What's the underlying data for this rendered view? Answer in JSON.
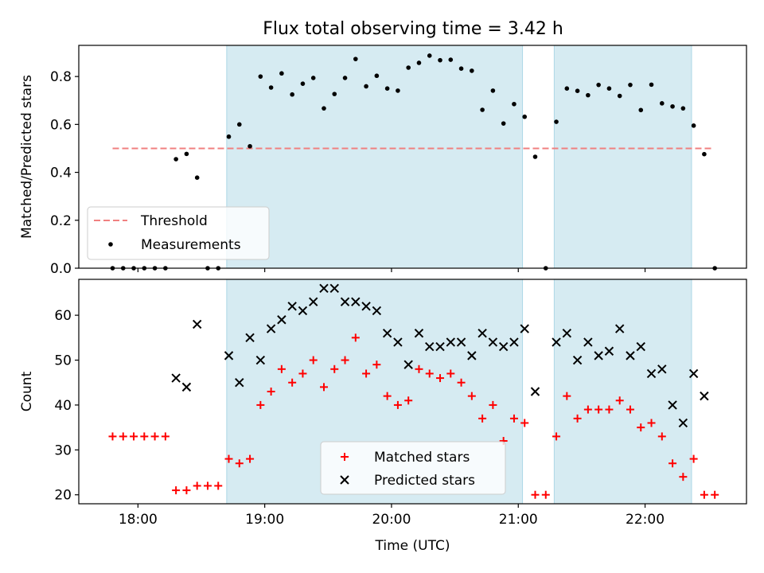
{
  "title": "Flux total observing time = 3.42 h",
  "colors": {
    "shade": "#add8e6",
    "threshold": "#f08080",
    "measurement": "#000000",
    "matched": "#ff0000",
    "predicted": "#000000"
  },
  "chart_data": [
    {
      "type": "scatter",
      "ylabel": "Matched/Predicted stars",
      "ylim": [
        0,
        0.93
      ],
      "yticks": [
        "0.0",
        "0.2",
        "0.4",
        "0.6",
        "0.8"
      ],
      "xlim": [
        "17:32",
        "22:48"
      ],
      "grid": false,
      "legend": {
        "placement": "lower-left",
        "entries": [
          "Threshold",
          "Measurements"
        ]
      },
      "shaded_intervals": [
        [
          "18:42",
          "21:02"
        ],
        [
          "21:17",
          "22:22"
        ]
      ],
      "threshold": {
        "name": "Threshold",
        "y": 0.5,
        "x_range": [
          "17:48",
          "22:32"
        ]
      },
      "series": [
        {
          "name": "Measurements",
          "points": [
            [
              "17:48",
              0.0
            ],
            [
              "17:53",
              0.0
            ],
            [
              "17:58",
              0.0
            ],
            [
              "18:03",
              0.0
            ],
            [
              "18:08",
              0.0
            ],
            [
              "18:13",
              0.0
            ],
            [
              "18:18",
              0.455
            ],
            [
              "18:23",
              0.477
            ],
            [
              "18:28",
              0.378
            ],
            [
              "18:33",
              0.0
            ],
            [
              "18:38",
              0.0
            ],
            [
              "18:43",
              0.549
            ],
            [
              "18:48",
              0.6
            ],
            [
              "18:53",
              0.509
            ],
            [
              "18:58",
              0.8
            ],
            [
              "19:03",
              0.754
            ],
            [
              "19:08",
              0.813
            ],
            [
              "19:13",
              0.725
            ],
            [
              "19:18",
              0.77
            ],
            [
              "19:23",
              0.794
            ],
            [
              "19:28",
              0.667
            ],
            [
              "19:33",
              0.727
            ],
            [
              "19:38",
              0.794
            ],
            [
              "19:43",
              0.873
            ],
            [
              "19:48",
              0.759
            ],
            [
              "19:53",
              0.803
            ],
            [
              "19:58",
              0.75
            ],
            [
              "20:03",
              0.741
            ],
            [
              "20:08",
              0.837
            ],
            [
              "20:13",
              0.857
            ],
            [
              "20:18",
              0.887
            ],
            [
              "20:23",
              0.868
            ],
            [
              "20:28",
              0.87
            ],
            [
              "20:33",
              0.833
            ],
            [
              "20:38",
              0.824
            ],
            [
              "20:43",
              0.661
            ],
            [
              "20:48",
              0.741
            ],
            [
              "20:53",
              0.604
            ],
            [
              "20:58",
              0.685
            ],
            [
              "21:03",
              0.632
            ],
            [
              "21:08",
              0.465
            ],
            [
              "21:13",
              0.0
            ],
            [
              "21:18",
              0.611
            ],
            [
              "21:23",
              0.75
            ],
            [
              "21:28",
              0.74
            ],
            [
              "21:33",
              0.722
            ],
            [
              "21:38",
              0.765
            ],
            [
              "21:43",
              0.75
            ],
            [
              "21:48",
              0.719
            ],
            [
              "21:53",
              0.765
            ],
            [
              "21:58",
              0.66
            ],
            [
              "22:03",
              0.766
            ],
            [
              "22:08",
              0.688
            ],
            [
              "22:13",
              0.675
            ],
            [
              "22:18",
              0.667
            ],
            [
              "22:23",
              0.595
            ],
            [
              "22:28",
              0.476
            ],
            [
              "22:33",
              0.0
            ]
          ]
        }
      ]
    },
    {
      "type": "scatter",
      "xlabel": "Time (UTC)",
      "ylabel": "Count",
      "ylim": [
        18,
        68
      ],
      "yticks": [
        "20",
        "30",
        "40",
        "50",
        "60"
      ],
      "xlim": [
        "17:32",
        "22:48"
      ],
      "xticks": [
        "18:00",
        "19:00",
        "20:00",
        "21:00",
        "22:00"
      ],
      "grid": false,
      "legend": {
        "placement": "lower-center",
        "entries": [
          "Matched stars",
          "Predicted stars"
        ]
      },
      "shaded_intervals": [
        [
          "18:42",
          "21:02"
        ],
        [
          "21:17",
          "22:22"
        ]
      ],
      "series": [
        {
          "name": "Matched stars",
          "marker": "plus",
          "points": [
            [
              "17:48",
              33
            ],
            [
              "17:53",
              33
            ],
            [
              "17:58",
              33
            ],
            [
              "18:03",
              33
            ],
            [
              "18:08",
              33
            ],
            [
              "18:13",
              33
            ],
            [
              "18:18",
              21
            ],
            [
              "18:23",
              21
            ],
            [
              "18:28",
              22
            ],
            [
              "18:33",
              22
            ],
            [
              "18:38",
              22
            ],
            [
              "18:43",
              28
            ],
            [
              "18:48",
              27
            ],
            [
              "18:53",
              28
            ],
            [
              "18:58",
              40
            ],
            [
              "19:03",
              43
            ],
            [
              "19:08",
              48
            ],
            [
              "19:13",
              45
            ],
            [
              "19:18",
              47
            ],
            [
              "19:23",
              50
            ],
            [
              "19:28",
              44
            ],
            [
              "19:33",
              48
            ],
            [
              "19:38",
              50
            ],
            [
              "19:43",
              55
            ],
            [
              "19:48",
              47
            ],
            [
              "19:53",
              49
            ],
            [
              "19:58",
              42
            ],
            [
              "20:03",
              40
            ],
            [
              "20:08",
              41
            ],
            [
              "20:13",
              48
            ],
            [
              "20:18",
              47
            ],
            [
              "20:23",
              46
            ],
            [
              "20:28",
              47
            ],
            [
              "20:33",
              45
            ],
            [
              "20:38",
              42
            ],
            [
              "20:43",
              37
            ],
            [
              "20:48",
              40
            ],
            [
              "20:53",
              32
            ],
            [
              "20:58",
              37
            ],
            [
              "21:03",
              36
            ],
            [
              "21:08",
              20
            ],
            [
              "21:13",
              20
            ],
            [
              "21:18",
              33
            ],
            [
              "21:23",
              42
            ],
            [
              "21:28",
              37
            ],
            [
              "21:33",
              39
            ],
            [
              "21:38",
              39
            ],
            [
              "21:43",
              39
            ],
            [
              "21:48",
              41
            ],
            [
              "21:53",
              39
            ],
            [
              "21:58",
              35
            ],
            [
              "22:03",
              36
            ],
            [
              "22:08",
              33
            ],
            [
              "22:13",
              27
            ],
            [
              "22:18",
              24
            ],
            [
              "22:23",
              28
            ],
            [
              "22:28",
              20
            ],
            [
              "22:33",
              20
            ]
          ]
        },
        {
          "name": "Predicted stars",
          "marker": "x",
          "points": [
            [
              "18:18",
              46
            ],
            [
              "18:23",
              44
            ],
            [
              "18:28",
              58
            ],
            [
              "18:43",
              51
            ],
            [
              "18:48",
              45
            ],
            [
              "18:53",
              55
            ],
            [
              "18:58",
              50
            ],
            [
              "19:03",
              57
            ],
            [
              "19:08",
              59
            ],
            [
              "19:13",
              62
            ],
            [
              "19:18",
              61
            ],
            [
              "19:23",
              63
            ],
            [
              "19:28",
              66
            ],
            [
              "19:33",
              66
            ],
            [
              "19:38",
              63
            ],
            [
              "19:43",
              63
            ],
            [
              "19:48",
              62
            ],
            [
              "19:53",
              61
            ],
            [
              "19:58",
              56
            ],
            [
              "20:03",
              54
            ],
            [
              "20:08",
              49
            ],
            [
              "20:13",
              56
            ],
            [
              "20:18",
              53
            ],
            [
              "20:23",
              53
            ],
            [
              "20:28",
              54
            ],
            [
              "20:33",
              54
            ],
            [
              "20:38",
              51
            ],
            [
              "20:43",
              56
            ],
            [
              "20:48",
              54
            ],
            [
              "20:53",
              53
            ],
            [
              "20:58",
              54
            ],
            [
              "21:03",
              57
            ],
            [
              "21:08",
              43
            ],
            [
              "21:18",
              54
            ],
            [
              "21:23",
              56
            ],
            [
              "21:28",
              50
            ],
            [
              "21:33",
              54
            ],
            [
              "21:38",
              51
            ],
            [
              "21:43",
              52
            ],
            [
              "21:48",
              57
            ],
            [
              "21:53",
              51
            ],
            [
              "21:58",
              53
            ],
            [
              "22:03",
              47
            ],
            [
              "22:08",
              48
            ],
            [
              "22:13",
              40
            ],
            [
              "22:18",
              36
            ],
            [
              "22:23",
              47
            ],
            [
              "22:28",
              42
            ]
          ]
        }
      ]
    }
  ]
}
